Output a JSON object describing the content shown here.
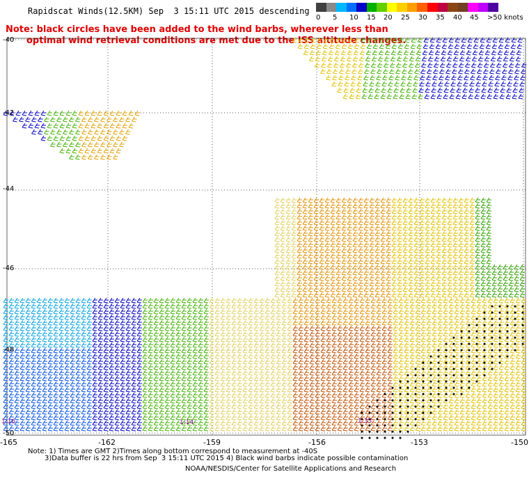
{
  "header": {
    "title": "Rapidscat Winds(12.5KM) Sep  3 15:11 UTC 2015 descending",
    "note_line1": "Note: black circles have been added to the wind barbs, wherever less than",
    "note_line2": "optimal wind retrieval conditions are met due to the ISS altitude changes."
  },
  "legend": {
    "labels": [
      "0",
      "5",
      "10",
      "15",
      "20",
      "25",
      "30",
      "35",
      "40",
      "45",
      ">50 knots"
    ],
    "colors": [
      "#404040",
      "#8a8a8a",
      "#00b8ff",
      "#0070ff",
      "#0000c8",
      "#00b000",
      "#60d000",
      "#ffff00",
      "#ffd000",
      "#ffa000",
      "#ff6000",
      "#ff0000",
      "#c00040",
      "#8b4513",
      "#704020",
      "#ff00ff",
      "#c000ff",
      "#5000a0"
    ]
  },
  "axes": {
    "lat_labels": [
      "-40",
      "-42",
      "-44",
      "-46",
      "-48",
      "-50"
    ],
    "lon_labels": [
      "-165",
      "-162",
      "-159",
      "-156",
      "-153",
      "-150"
    ]
  },
  "swath_labels": [
    "1:16",
    "1:14",
    "1:33"
  ],
  "footer": {
    "line1": "Note: 1) Times are GMT 2)Times along bottom correspond to measurement at -40S",
    "line2": "3)Data buffer is 22 hrs from Sep  3 15:11 UTC 2015 4) Black wind barbs indicate possible contamination",
    "line3": "NOAA/NESDIS/Center for Satellite Applications and Research"
  }
}
